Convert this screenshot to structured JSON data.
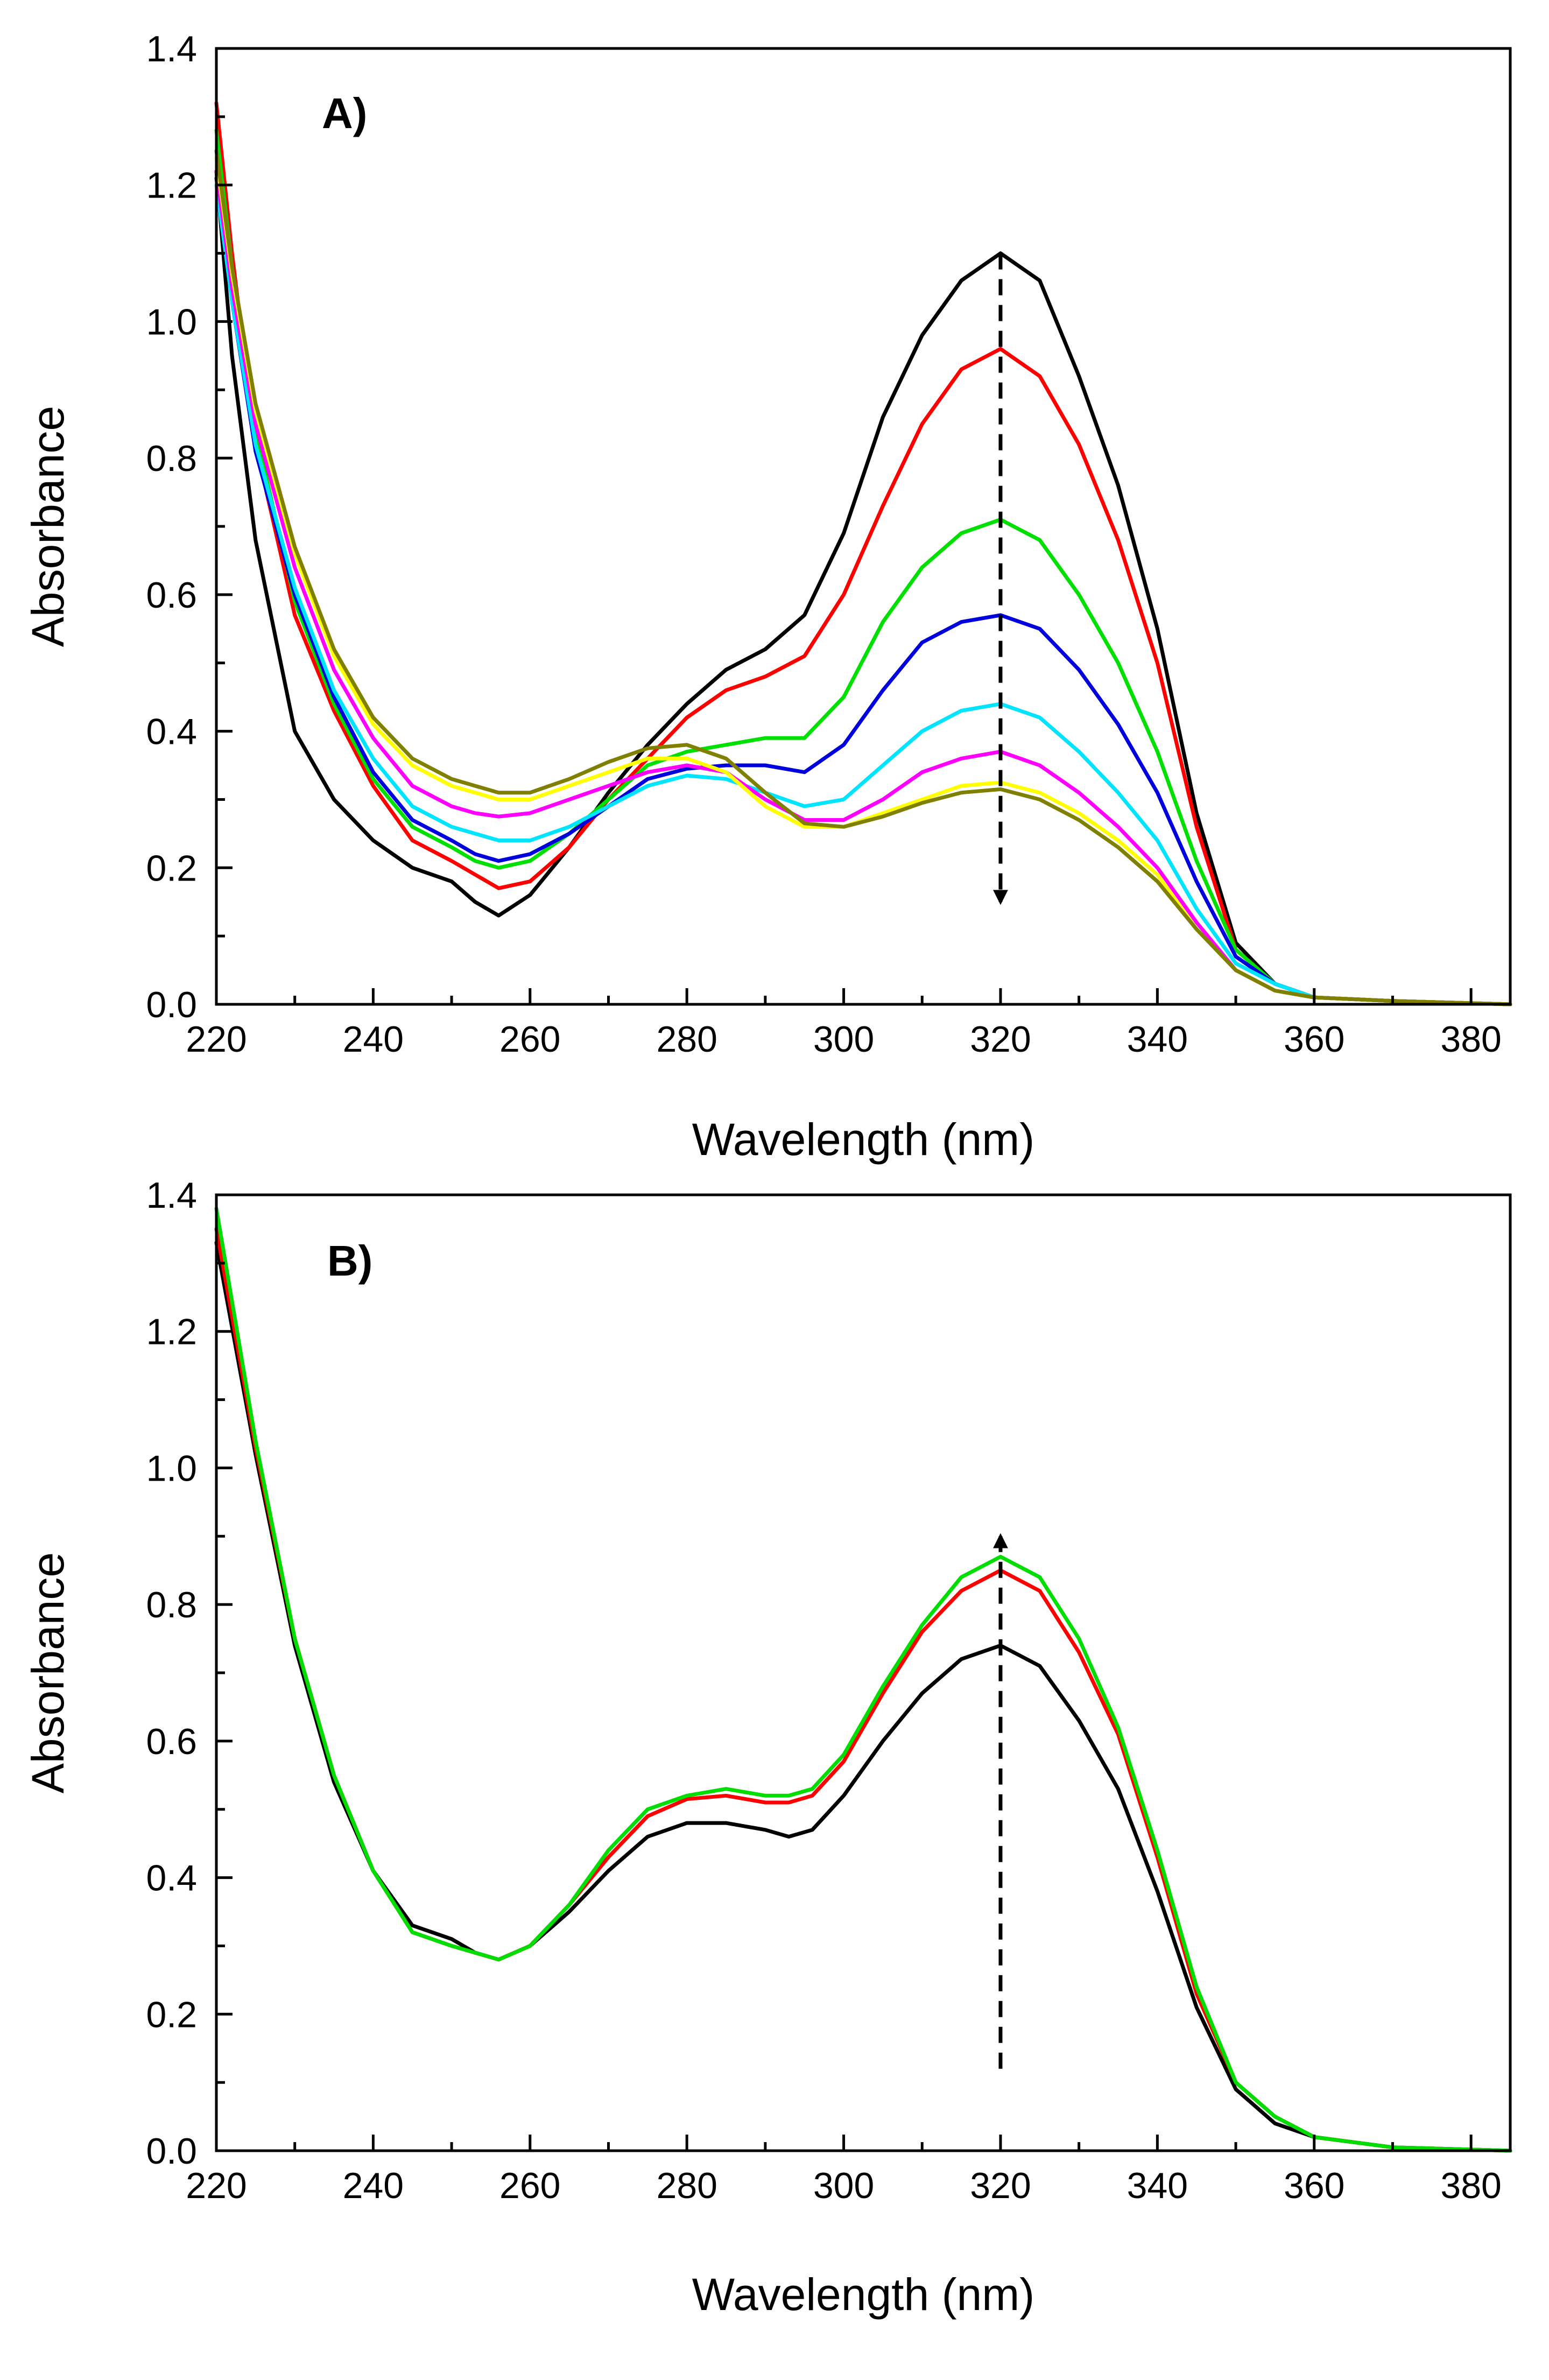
{
  "chart_data": [
    {
      "type": "line",
      "panel_label": "A)",
      "xlabel": "Wavelength (nm)",
      "ylabel": "Absorbance",
      "xlim": [
        220,
        385
      ],
      "ylim": [
        0.0,
        1.4
      ],
      "xticks": [
        "220",
        "240",
        "260",
        "280",
        "300",
        "320",
        "340",
        "360",
        "380"
      ],
      "yticks": [
        "0.0",
        "0.2",
        "0.4",
        "0.6",
        "0.8",
        "1.0",
        "1.2",
        "1.4"
      ],
      "grid": false,
      "x": [
        220,
        222,
        225,
        230,
        235,
        240,
        245,
        250,
        253,
        256,
        260,
        265,
        270,
        275,
        280,
        285,
        290,
        295,
        300,
        305,
        310,
        315,
        320,
        325,
        330,
        335,
        340,
        345,
        350,
        355,
        360,
        370,
        385
      ],
      "series": [
        {
          "name": "black",
          "color": "#000000",
          "values": [
            1.22,
            0.95,
            0.68,
            0.4,
            0.3,
            0.24,
            0.2,
            0.18,
            0.15,
            0.13,
            0.16,
            0.23,
            0.31,
            0.38,
            0.44,
            0.49,
            0.52,
            0.57,
            0.69,
            0.86,
            0.98,
            1.06,
            1.1,
            1.06,
            0.92,
            0.76,
            0.55,
            0.28,
            0.09,
            0.03,
            0.01,
            0.005,
            0.0
          ]
        },
        {
          "name": "red",
          "color": "#ff0000",
          "values": [
            1.32,
            1.1,
            0.82,
            0.57,
            0.43,
            0.32,
            0.24,
            0.21,
            0.19,
            0.17,
            0.18,
            0.23,
            0.3,
            0.36,
            0.42,
            0.46,
            0.48,
            0.51,
            0.6,
            0.73,
            0.85,
            0.93,
            0.96,
            0.92,
            0.82,
            0.68,
            0.5,
            0.26,
            0.08,
            0.03,
            0.01,
            0.005,
            0.0
          ]
        },
        {
          "name": "green",
          "color": "#00e000",
          "values": [
            1.28,
            1.08,
            0.84,
            0.59,
            0.44,
            0.33,
            0.26,
            0.23,
            0.21,
            0.2,
            0.21,
            0.25,
            0.3,
            0.35,
            0.37,
            0.38,
            0.39,
            0.39,
            0.45,
            0.56,
            0.64,
            0.69,
            0.71,
            0.68,
            0.6,
            0.5,
            0.37,
            0.21,
            0.08,
            0.03,
            0.01,
            0.005,
            0.0
          ]
        },
        {
          "name": "blue",
          "color": "#0000dd",
          "values": [
            1.21,
            1.03,
            0.81,
            0.6,
            0.45,
            0.34,
            0.27,
            0.24,
            0.22,
            0.21,
            0.22,
            0.25,
            0.29,
            0.33,
            0.345,
            0.35,
            0.35,
            0.34,
            0.38,
            0.46,
            0.53,
            0.56,
            0.57,
            0.55,
            0.49,
            0.41,
            0.31,
            0.18,
            0.07,
            0.03,
            0.01,
            0.005,
            0.0
          ]
        },
        {
          "name": "cyan",
          "color": "#00e5ff",
          "values": [
            1.2,
            1.03,
            0.82,
            0.61,
            0.46,
            0.36,
            0.29,
            0.26,
            0.25,
            0.24,
            0.24,
            0.26,
            0.29,
            0.32,
            0.335,
            0.33,
            0.31,
            0.29,
            0.3,
            0.35,
            0.4,
            0.43,
            0.44,
            0.42,
            0.37,
            0.31,
            0.24,
            0.14,
            0.06,
            0.03,
            0.01,
            0.005,
            0.0
          ]
        },
        {
          "name": "magenta",
          "color": "#ff00ff",
          "values": [
            1.22,
            1.05,
            0.85,
            0.64,
            0.49,
            0.39,
            0.32,
            0.29,
            0.28,
            0.275,
            0.28,
            0.3,
            0.32,
            0.34,
            0.35,
            0.34,
            0.3,
            0.27,
            0.27,
            0.3,
            0.34,
            0.36,
            0.37,
            0.35,
            0.31,
            0.26,
            0.2,
            0.12,
            0.05,
            0.02,
            0.01,
            0.005,
            0.0
          ]
        },
        {
          "name": "yellow",
          "color": "#ffff00",
          "values": [
            1.24,
            1.07,
            0.87,
            0.66,
            0.51,
            0.41,
            0.35,
            0.32,
            0.31,
            0.3,
            0.3,
            0.32,
            0.34,
            0.36,
            0.36,
            0.34,
            0.29,
            0.26,
            0.26,
            0.28,
            0.3,
            0.32,
            0.325,
            0.31,
            0.28,
            0.24,
            0.19,
            0.11,
            0.05,
            0.02,
            0.01,
            0.005,
            0.0
          ]
        },
        {
          "name": "olive",
          "color": "#808000",
          "values": [
            1.25,
            1.08,
            0.88,
            0.67,
            0.52,
            0.42,
            0.36,
            0.33,
            0.32,
            0.31,
            0.31,
            0.33,
            0.355,
            0.375,
            0.38,
            0.36,
            0.31,
            0.265,
            0.26,
            0.275,
            0.295,
            0.31,
            0.315,
            0.3,
            0.27,
            0.23,
            0.18,
            0.11,
            0.05,
            0.02,
            0.01,
            0.005,
            0.0
          ]
        }
      ],
      "annotations": [
        {
          "type": "dashed-arrow",
          "x": 320,
          "from": 1.1,
          "to": 0.15,
          "direction": "down"
        }
      ]
    },
    {
      "type": "line",
      "panel_label": "B)",
      "xlabel": "Wavelength (nm)",
      "ylabel": "Absorbance",
      "xlim": [
        220,
        385
      ],
      "ylim": [
        0.0,
        1.4
      ],
      "xticks": [
        "220",
        "240",
        "260",
        "280",
        "300",
        "320",
        "340",
        "360",
        "380"
      ],
      "yticks": [
        "0.0",
        "0.2",
        "0.4",
        "0.6",
        "0.8",
        "1.0",
        "1.2",
        "1.4"
      ],
      "grid": false,
      "x": [
        220,
        225,
        230,
        235,
        240,
        245,
        250,
        253,
        256,
        260,
        265,
        270,
        275,
        280,
        285,
        290,
        293,
        296,
        300,
        305,
        310,
        315,
        320,
        325,
        330,
        335,
        340,
        345,
        350,
        355,
        360,
        370,
        385
      ],
      "series": [
        {
          "name": "black",
          "color": "#000000",
          "values": [
            1.33,
            1.02,
            0.74,
            0.54,
            0.41,
            0.33,
            0.31,
            0.29,
            0.28,
            0.3,
            0.35,
            0.41,
            0.46,
            0.48,
            0.48,
            0.47,
            0.46,
            0.47,
            0.52,
            0.6,
            0.67,
            0.72,
            0.74,
            0.71,
            0.63,
            0.53,
            0.38,
            0.21,
            0.09,
            0.04,
            0.02,
            0.005,
            0.0
          ]
        },
        {
          "name": "red",
          "color": "#ff0000",
          "values": [
            1.35,
            1.03,
            0.75,
            0.55,
            0.41,
            0.32,
            0.3,
            0.29,
            0.28,
            0.3,
            0.36,
            0.43,
            0.49,
            0.515,
            0.52,
            0.51,
            0.51,
            0.52,
            0.57,
            0.67,
            0.76,
            0.82,
            0.85,
            0.82,
            0.73,
            0.61,
            0.43,
            0.23,
            0.1,
            0.05,
            0.02,
            0.005,
            0.0
          ]
        },
        {
          "name": "green",
          "color": "#00dd00",
          "values": [
            1.38,
            1.04,
            0.75,
            0.55,
            0.41,
            0.32,
            0.3,
            0.29,
            0.28,
            0.3,
            0.36,
            0.44,
            0.5,
            0.52,
            0.53,
            0.52,
            0.52,
            0.53,
            0.58,
            0.68,
            0.77,
            0.84,
            0.87,
            0.84,
            0.75,
            0.62,
            0.44,
            0.24,
            0.1,
            0.05,
            0.02,
            0.005,
            0.0
          ]
        }
      ],
      "annotations": [
        {
          "type": "dashed-arrow",
          "x": 320,
          "from": 0.12,
          "to": 0.9,
          "direction": "up"
        }
      ]
    }
  ]
}
